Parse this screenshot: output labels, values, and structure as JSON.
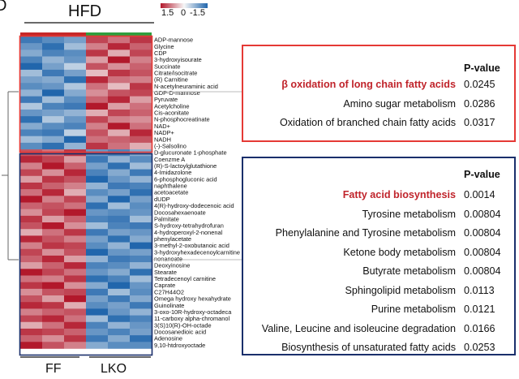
{
  "panel_letter": "D",
  "group_title": "HFD",
  "color_scale": {
    "labels": [
      "1.5",
      "0",
      "-1.5"
    ],
    "high_color": "#b2182b",
    "mid_color": "#f7f7f7",
    "low_color": "#2166ac"
  },
  "group_labels": [
    "FF",
    "LKO"
  ],
  "group_bar_colors": {
    "FF": "#c62828",
    "LKO": "#2e9e3e"
  },
  "chart_data": {
    "type": "heatmap",
    "title": "HFD",
    "columns": [
      "FF",
      "FF",
      "FF",
      "LKO",
      "LKO",
      "LKO"
    ],
    "rows": [
      "ADP-mannose",
      "Glycine",
      "CDP",
      "3-hydroxyisourate",
      "Succinate",
      "Citrate/isocitrate",
      "(R) Carnitine",
      "N-acetylneuraminic acid",
      "GDP-D-mannose",
      "Pyruvate",
      "Acetylcholine",
      "Cis-aconitate",
      "N-phosphocreatinate",
      "NAD+",
      "NADP+",
      "NADH",
      "(-)-Salsolino",
      "D-glucuronate 1-phosphate",
      "Coenzme A",
      "(R)-S-lactoylglutathione",
      "4-Imidazolone",
      "6-phosphogluconic acid",
      "naphthalene",
      "acetoacetate",
      "dUDP",
      "4(R)-hydroxy-dodecenoic acid",
      "Docosahexaenoate",
      "Palmitate",
      "S-hydroxy-tetrahydrofuran",
      "4-hydroperoxyl-2-nonenal",
      "phenylacetate",
      "3-methyl-2-oxobutanoic acid",
      "3-hydroxyhexadecenoylcarnitine",
      "nonanoate",
      "Deoxyinosine",
      "Stearate",
      "Tetradecenoyl carnitine",
      "Caprate",
      "C27H44O2",
      "Omega hydroxy hexahydrate",
      "Guinolinate",
      "3-oxo-10R-hydroxy-octadeca",
      "11-carboxy alpha-chromanol",
      "3(S)10(R)-OH-octade",
      "Docosanedioic acid",
      "Adenosine",
      "9,10-htdroxyoctade"
    ],
    "values": [
      [
        -1.3,
        -1.1,
        -0.9,
        1.2,
        0.9,
        1.3
      ],
      [
        -1.0,
        -1.4,
        -0.6,
        0.8,
        1.4,
        1.0
      ],
      [
        -0.8,
        -1.2,
        -1.1,
        1.3,
        0.5,
        1.2
      ],
      [
        -1.2,
        -0.7,
        -1.0,
        0.6,
        1.5,
        0.8
      ],
      [
        -1.5,
        -0.9,
        -0.4,
        1.1,
        0.7,
        1.0
      ],
      [
        -0.6,
        -1.3,
        -0.9,
        0.4,
        1.3,
        1.1
      ],
      [
        -0.9,
        -0.8,
        -1.4,
        1.4,
        0.9,
        0.8
      ],
      [
        -1.1,
        -1.0,
        -0.5,
        0.9,
        0.4,
        1.3
      ],
      [
        -0.7,
        -1.5,
        -0.8,
        0.7,
        1.1,
        1.2
      ],
      [
        -1.3,
        -0.6,
        -1.1,
        1.0,
        1.4,
        0.6
      ],
      [
        -0.5,
        -1.2,
        -1.3,
        1.5,
        0.6,
        0.9
      ],
      [
        -1.0,
        -0.9,
        -0.7,
        0.5,
        1.2,
        1.0
      ],
      [
        -1.4,
        -0.5,
        -1.0,
        1.2,
        0.8,
        0.7
      ],
      [
        -0.8,
        -1.1,
        -1.2,
        0.8,
        1.5,
        0.9
      ],
      [
        -1.2,
        -1.3,
        -0.4,
        1.1,
        0.5,
        1.4
      ],
      [
        -0.6,
        -0.8,
        -1.5,
        0.9,
        1.0,
        1.1
      ],
      [
        -1.1,
        -1.4,
        -0.7,
        1.3,
        0.9,
        0.5
      ],
      [
        1.1,
        0.9,
        1.3,
        -1.0,
        -1.2,
        -0.8
      ],
      [
        1.4,
        1.2,
        0.6,
        -1.3,
        -0.7,
        -1.1
      ],
      [
        0.8,
        1.5,
        1.0,
        -0.9,
        -1.4,
        -0.6
      ],
      [
        1.2,
        0.7,
        1.4,
        -1.2,
        -0.8,
        -1.3
      ],
      [
        0.6,
        1.3,
        1.1,
        -1.5,
        -1.0,
        -0.7
      ],
      [
        1.3,
        1.0,
        0.8,
        -0.7,
        -1.3,
        -1.2
      ],
      [
        0.9,
        1.4,
        0.5,
        -1.1,
        -0.9,
        -1.4
      ],
      [
        1.5,
        0.8,
        1.2,
        -0.8,
        -1.5,
        -0.9
      ],
      [
        1.0,
        1.1,
        0.9,
        -1.4,
        -0.6,
        -1.1
      ],
      [
        0.7,
        1.2,
        1.5,
        -1.0,
        -1.1,
        -1.0
      ],
      [
        1.3,
        0.6,
        1.0,
        -1.2,
        -1.3,
        -0.6
      ],
      [
        1.1,
        1.5,
        0.7,
        -0.6,
        -1.2,
        -1.3
      ],
      [
        0.5,
        0.9,
        1.3,
        -1.3,
        -0.9,
        -1.0
      ],
      [
        1.4,
        1.1,
        0.8,
        -0.9,
        -1.4,
        -0.8
      ],
      [
        0.8,
        1.3,
        1.2,
        -1.1,
        -0.7,
        -1.5
      ],
      [
        1.2,
        0.7,
        1.1,
        -1.5,
        -1.0,
        -0.9
      ],
      [
        1.0,
        1.4,
        0.6,
        -0.7,
        -1.3,
        -1.2
      ],
      [
        0.6,
        1.0,
        1.4,
        -1.2,
        -1.1,
        -0.7
      ],
      [
        1.5,
        1.2,
        0.9,
        -1.0,
        -0.8,
        -1.4
      ],
      [
        0.9,
        0.8,
        1.3,
        -1.4,
        -1.2,
        -0.6
      ],
      [
        1.3,
        1.5,
        0.7,
        -0.8,
        -1.5,
        -1.0
      ],
      [
        0.7,
        1.1,
        1.2,
        -1.3,
        -0.6,
        -1.1
      ],
      [
        1.1,
        0.6,
        1.5,
        -0.9,
        -1.3,
        -0.8
      ],
      [
        1.4,
        1.3,
        0.5,
        -1.1,
        -0.9,
        -1.3
      ],
      [
        0.8,
        1.0,
        1.1,
        -1.5,
        -1.0,
        -0.7
      ],
      [
        1.2,
        1.4,
        0.9,
        -0.6,
        -1.4,
        -1.2
      ],
      [
        0.5,
        0.9,
        1.4,
        -1.2,
        -0.7,
        -1.0
      ],
      [
        1.3,
        1.2,
        1.0,
        -1.0,
        -1.2,
        -0.9
      ],
      [
        1.0,
        0.7,
        1.3,
        -1.3,
        -0.8,
        -1.4
      ],
      [
        1.5,
        1.1,
        0.8,
        -0.8,
        -1.1,
        -1.1
      ]
    ],
    "clusters": [
      {
        "start": 0,
        "end": 16
      },
      {
        "start": 17,
        "end": 46
      }
    ],
    "color_range": [
      -1.5,
      1.5
    ]
  },
  "panel_top": {
    "header": "P-value",
    "rows": [
      {
        "name": "β oxidation of long chain fatty acids",
        "value": "0.0245",
        "highlight": true
      },
      {
        "name": "Amino sugar metabolism",
        "value": "0.0286",
        "highlight": false
      },
      {
        "name": "Oxidation of branched chain fatty acids",
        "value": "0.0317",
        "highlight": false
      }
    ],
    "border_color": "#e53935"
  },
  "panel_bottom": {
    "header": "P-value",
    "rows": [
      {
        "name": "Fatty acid biosynthesis",
        "value": "0.0014",
        "highlight": true
      },
      {
        "name": "Tyrosine metabolism",
        "value": "0.00804",
        "highlight": false
      },
      {
        "name": "Phenylalanine and Tyrosine metabolism",
        "value": "0.00804",
        "highlight": false
      },
      {
        "name": "Ketone body metabolism",
        "value": "0.00804",
        "highlight": false
      },
      {
        "name": "Butyrate metabolism",
        "value": "0.00804",
        "highlight": false
      },
      {
        "name": "Sphingolipid metabolism",
        "value": "0.0113",
        "highlight": false
      },
      {
        "name": "Purine metabolism",
        "value": "0.0121",
        "highlight": false
      },
      {
        "name": "Valine, Leucine and isoleucine degradation",
        "value": "0.0166",
        "highlight": false
      },
      {
        "name": "Biosynthesis of unsaturated fatty acids",
        "value": "0.0253",
        "highlight": false
      }
    ],
    "border_color": "#1a2f6b"
  }
}
